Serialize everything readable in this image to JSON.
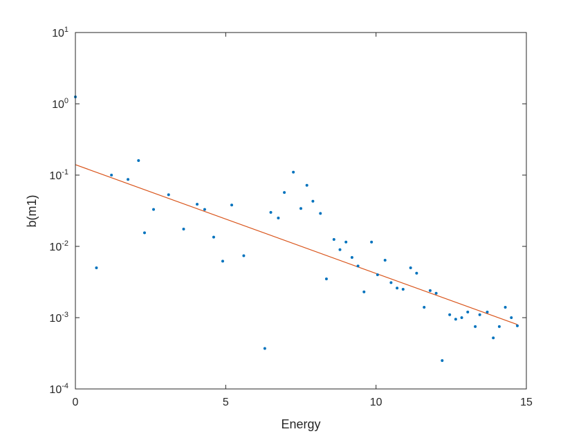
{
  "chart_data": {
    "type": "scatter",
    "title": "",
    "xlabel": "Energy",
    "ylabel": "b(m1)",
    "xlim": [
      0,
      15
    ],
    "ylim": [
      0.0001,
      10
    ],
    "yscale": "log",
    "grid": false,
    "x_ticks": [
      {
        "value": 0,
        "label": "0"
      },
      {
        "value": 5,
        "label": "5"
      },
      {
        "value": 10,
        "label": "10"
      },
      {
        "value": 15,
        "label": "15"
      }
    ],
    "y_ticks": [
      {
        "value": 0.0001,
        "base": "10",
        "exp": "-4"
      },
      {
        "value": 0.001,
        "base": "10",
        "exp": "-3"
      },
      {
        "value": 0.01,
        "base": "10",
        "exp": "-2"
      },
      {
        "value": 0.1,
        "base": "10",
        "exp": "-1"
      },
      {
        "value": 1,
        "base": "10",
        "exp": "0"
      },
      {
        "value": 10,
        "base": "10",
        "exp": "1"
      }
    ],
    "series": [
      {
        "type": "scatter",
        "color": "#0072BD",
        "points": [
          [
            0.0,
            1.25
          ],
          [
            0.7,
            0.005
          ],
          [
            1.2,
            0.1
          ],
          [
            1.75,
            0.087
          ],
          [
            2.1,
            0.16
          ],
          [
            2.3,
            0.0155
          ],
          [
            2.6,
            0.033
          ],
          [
            3.1,
            0.053
          ],
          [
            3.6,
            0.0175
          ],
          [
            4.05,
            0.039
          ],
          [
            4.3,
            0.033
          ],
          [
            4.6,
            0.0135
          ],
          [
            4.9,
            0.0062
          ],
          [
            5.2,
            0.038
          ],
          [
            5.6,
            0.0074
          ],
          [
            6.3,
            0.00037
          ],
          [
            6.5,
            0.03
          ],
          [
            6.75,
            0.025
          ],
          [
            6.95,
            0.057
          ],
          [
            7.25,
            0.11
          ],
          [
            7.5,
            0.034
          ],
          [
            7.7,
            0.072
          ],
          [
            7.9,
            0.043
          ],
          [
            8.15,
            0.029
          ],
          [
            8.35,
            0.0035
          ],
          [
            8.6,
            0.0125
          ],
          [
            8.8,
            0.009
          ],
          [
            9.0,
            0.0115
          ],
          [
            9.2,
            0.007
          ],
          [
            9.4,
            0.0053
          ],
          [
            9.6,
            0.0023
          ],
          [
            9.85,
            0.0115
          ],
          [
            10.05,
            0.004
          ],
          [
            10.3,
            0.0064
          ],
          [
            10.5,
            0.0031
          ],
          [
            10.7,
            0.0026
          ],
          [
            10.9,
            0.0025
          ],
          [
            11.15,
            0.005
          ],
          [
            11.35,
            0.0042
          ],
          [
            11.6,
            0.0014
          ],
          [
            11.8,
            0.0024
          ],
          [
            12.0,
            0.0022
          ],
          [
            12.2,
            0.00025
          ],
          [
            12.45,
            0.0011
          ],
          [
            12.65,
            0.00095
          ],
          [
            12.85,
            0.001
          ],
          [
            13.05,
            0.0012
          ],
          [
            13.3,
            0.00075
          ],
          [
            13.45,
            0.0011
          ],
          [
            13.7,
            0.0012
          ],
          [
            13.9,
            0.00052
          ],
          [
            14.1,
            0.00075
          ],
          [
            14.3,
            0.0014
          ],
          [
            14.5,
            0.001
          ],
          [
            14.7,
            0.00077
          ]
        ]
      },
      {
        "type": "line",
        "color": "#D95319",
        "points": [
          [
            0.0,
            0.14
          ],
          [
            14.7,
            0.0008
          ]
        ]
      }
    ]
  }
}
